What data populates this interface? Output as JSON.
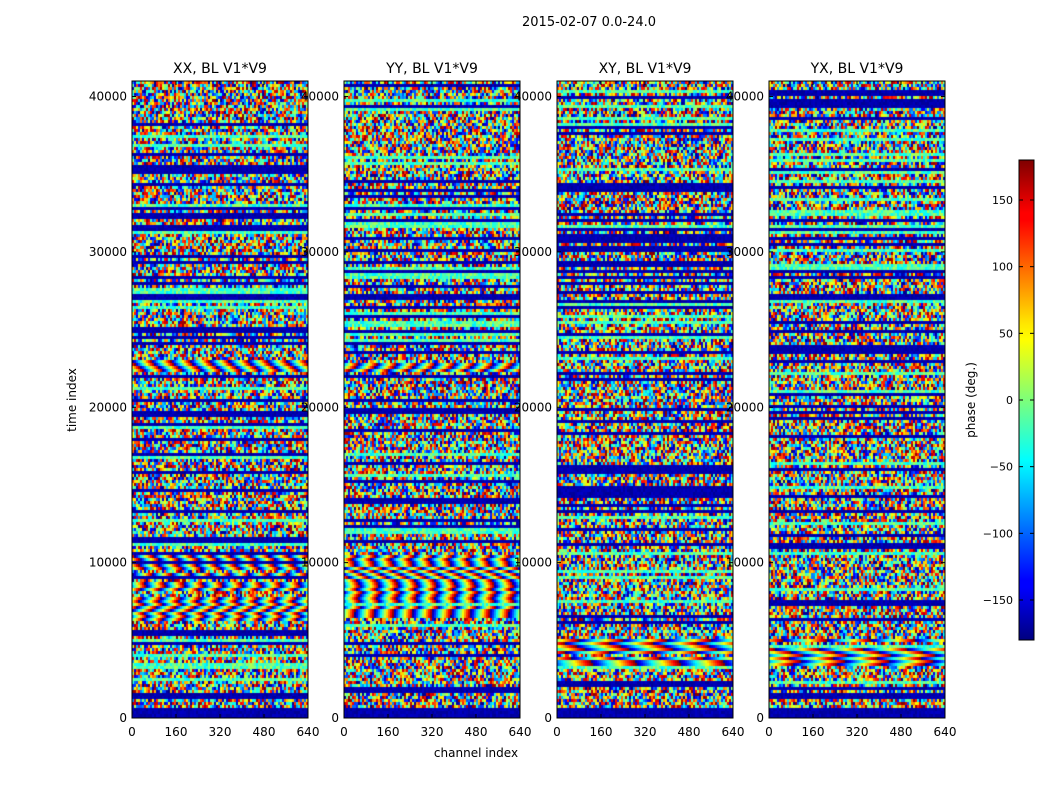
{
  "figure": {
    "suptitle": "2015-02-07 0.0-24.0",
    "xlabel": "channel index",
    "ylabel": "time index",
    "colorbar_label": "phase (deg.)"
  },
  "chart_data": {
    "type": "heatmap",
    "colormap": "jet",
    "colorbar": {
      "range": [
        -180,
        180
      ],
      "ticks": [
        -150,
        -100,
        -50,
        0,
        50,
        100,
        150
      ]
    },
    "xlim": [
      0,
      640
    ],
    "ylim": [
      0,
      41000
    ],
    "x_ticks": [
      0,
      160,
      320,
      480,
      640
    ],
    "y_ticks": [
      0,
      10000,
      20000,
      30000,
      40000
    ],
    "panels": [
      {
        "title": "XX, BL V1*V9",
        "fringe_bands": [
          [
            6300,
            10600
          ],
          [
            22300,
            23200
          ]
        ],
        "fringe_period_channels": 70
      },
      {
        "title": "YY, BL V1*V9",
        "fringe_bands": [
          [
            6300,
            10600
          ],
          [
            22300,
            23200
          ]
        ],
        "fringe_period_channels": 70
      },
      {
        "title": "XY, BL V1*V9",
        "fringe_bands": [
          [
            3400,
            5200
          ]
        ],
        "fringe_period_channels": 160
      },
      {
        "title": "YX, BL V1*V9",
        "fringe_bands": [
          [
            3400,
            5200
          ]
        ],
        "fringe_period_channels": 160
      }
    ]
  }
}
